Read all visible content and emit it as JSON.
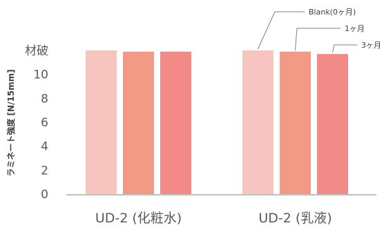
{
  "chart_data": {
    "type": "bar",
    "ylabel": "ラミネート強度 [N/15mm]",
    "ylim": [
      0,
      12
    ],
    "yticks": [
      {
        "value": 0,
        "label": "0"
      },
      {
        "value": 2,
        "label": "2"
      },
      {
        "value": 4,
        "label": "4"
      },
      {
        "value": 6,
        "label": "6"
      },
      {
        "value": 8,
        "label": "8"
      },
      {
        "value": 10,
        "label": "10"
      },
      {
        "value": 12,
        "label": "材破"
      }
    ],
    "categories": [
      "UD-2 (化粧水)",
      "UD-2 (乳液)"
    ],
    "series": [
      {
        "name": "Blank(0ヶ月)",
        "values": [
          12,
          12
        ],
        "color": "#f8c4c0"
      },
      {
        "name": "1ヶ月",
        "values": [
          11.9,
          11.9
        ],
        "color": "#f29a85"
      },
      {
        "name": "3ヶ月",
        "values": [
          11.9,
          11.7
        ],
        "color": "#f28a88"
      }
    ],
    "grid": false,
    "legend": "callout labels at top-right"
  },
  "colors": {
    "axis": "#bfbfbf",
    "text": "#595959",
    "leader": "#7f7f7f"
  }
}
